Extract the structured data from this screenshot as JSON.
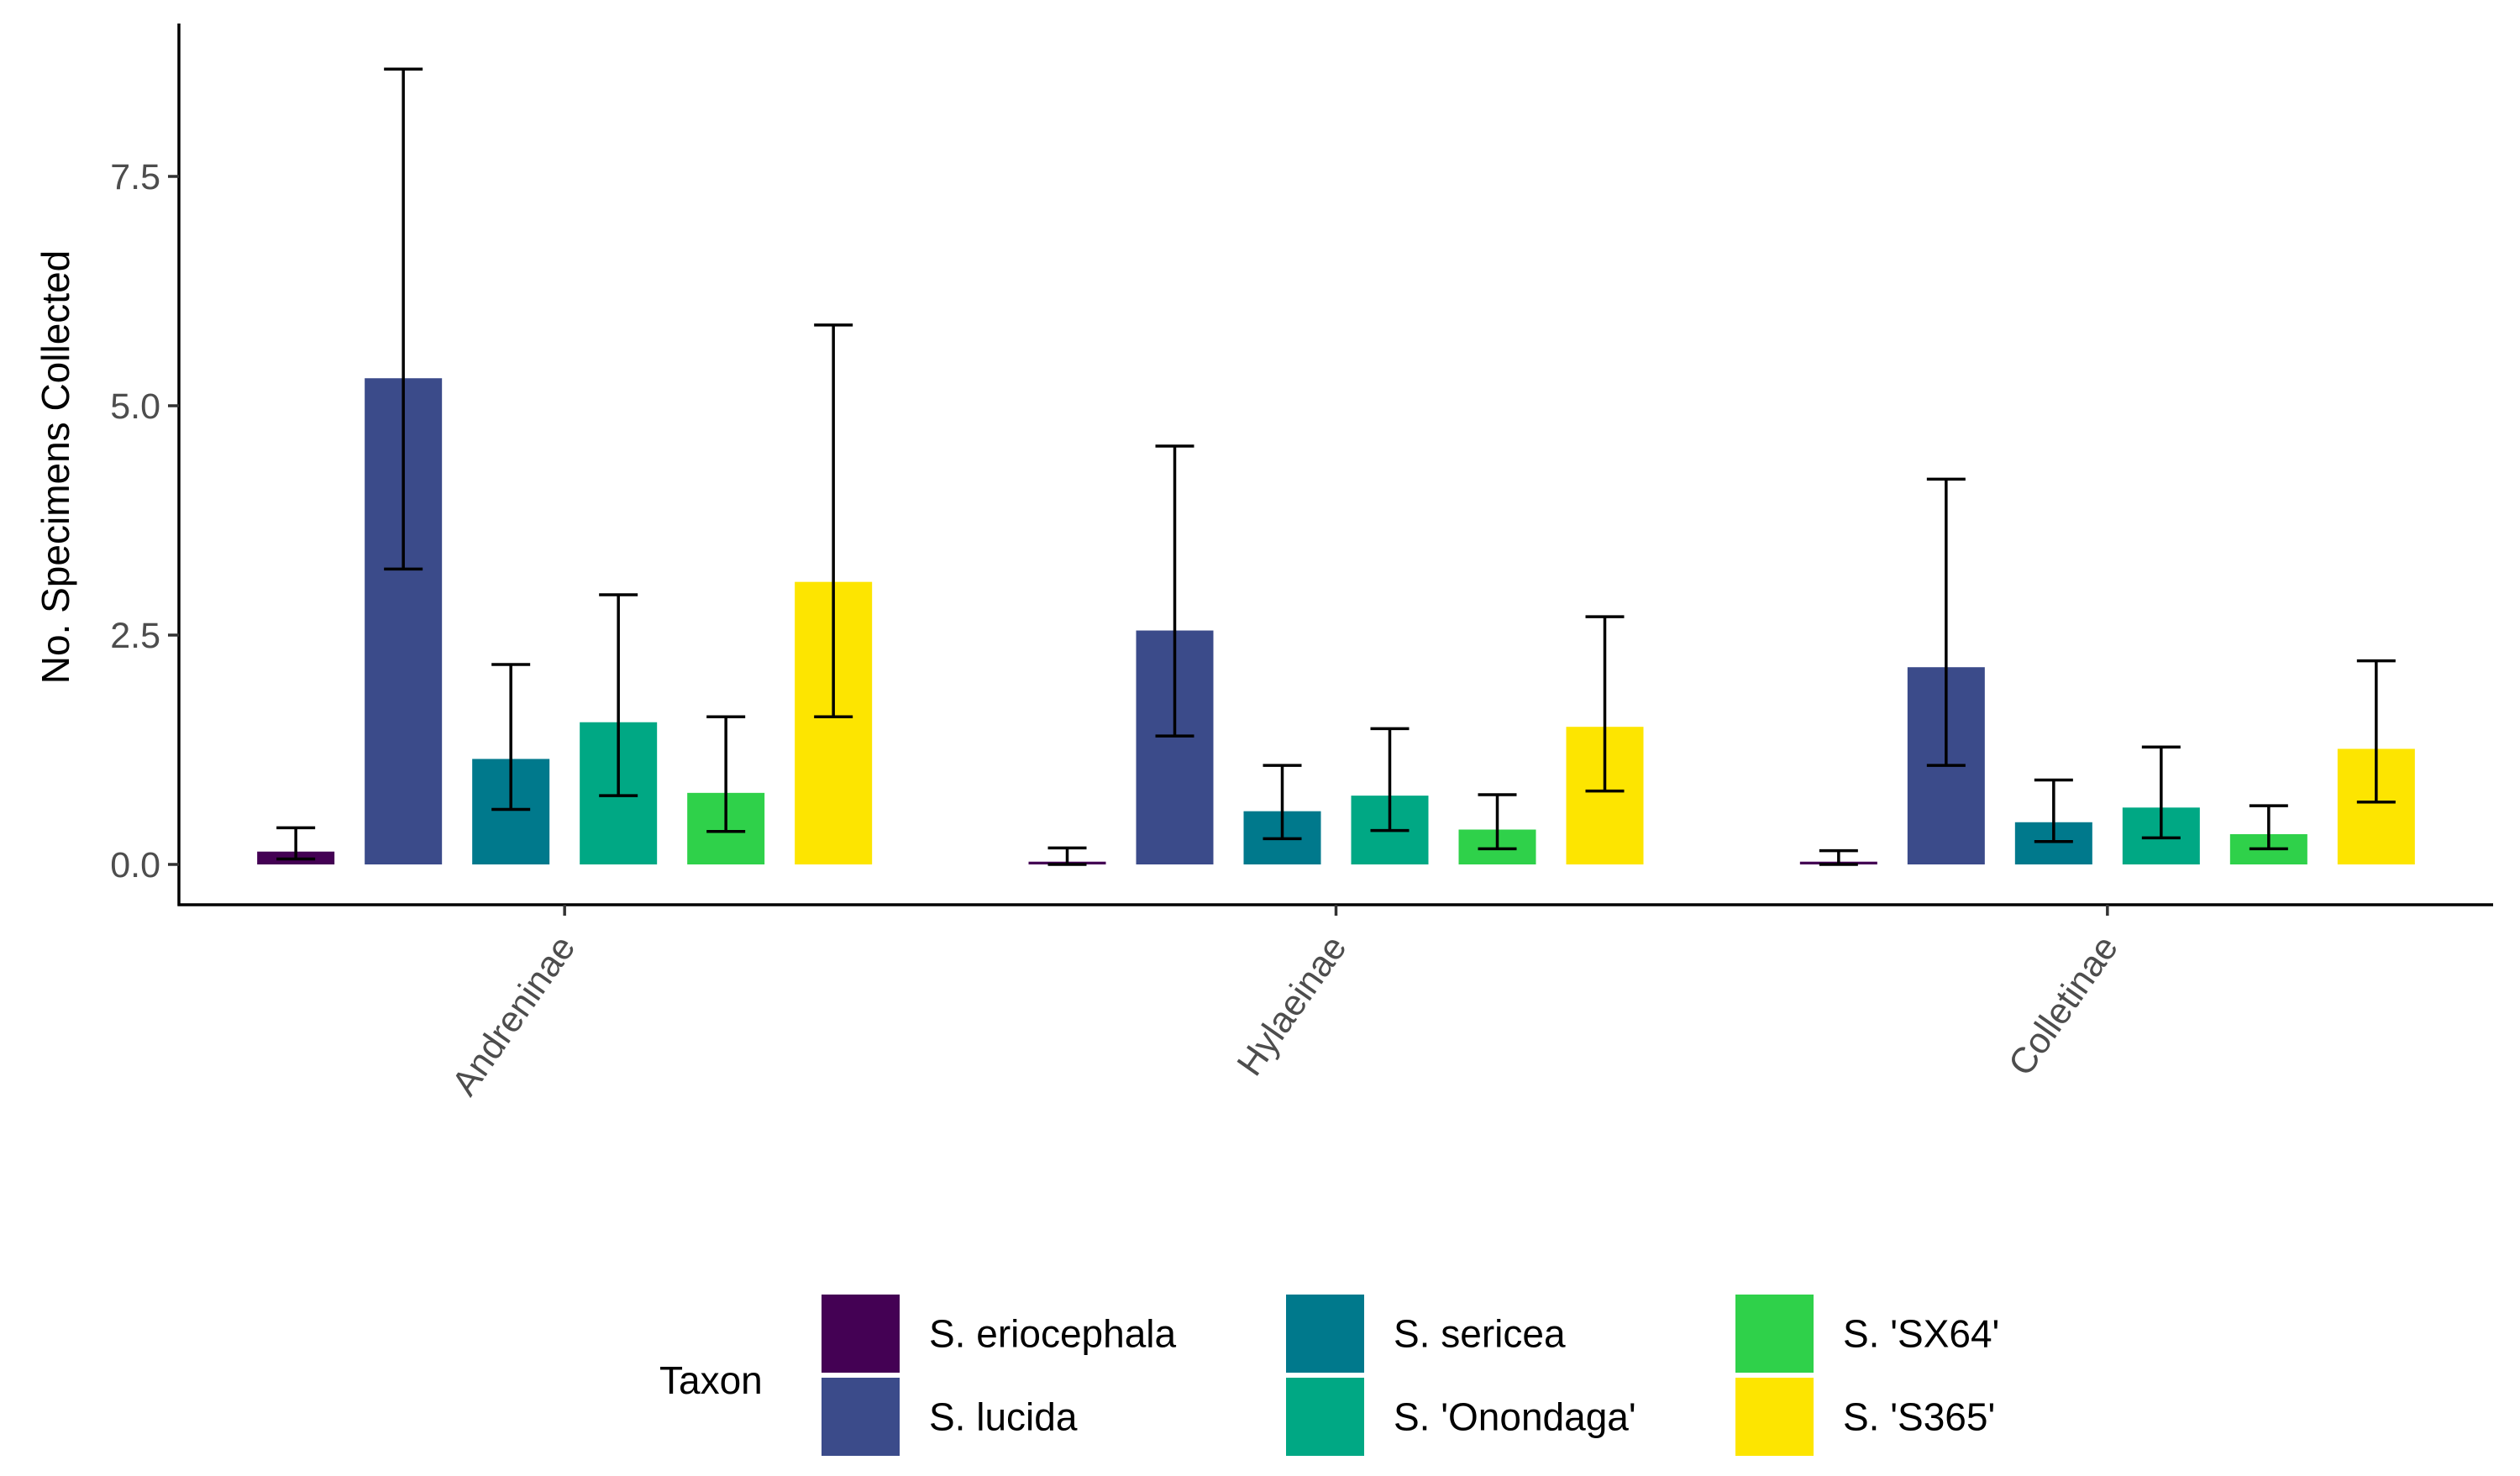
{
  "chart_data": {
    "type": "bar",
    "title": "",
    "xlabel": "",
    "ylabel": "No. Specimens Collected",
    "ylim": [
      -0.45,
      9.3
    ],
    "yticks": [
      0.0,
      2.5,
      5.0,
      7.5
    ],
    "ytick_labels": [
      "0.0",
      "2.5",
      "5.0",
      "7.5"
    ],
    "categories": [
      "Andreninae",
      "Hylaeinae",
      "Colletinae"
    ],
    "series": [
      {
        "name": "S. eriocephala",
        "color": "#440154",
        "values": [
          0.14,
          0.03,
          0.03
        ],
        "err_low": [
          0.06,
          0.0,
          0.0
        ],
        "err_high": [
          0.4,
          0.18,
          0.15
        ]
      },
      {
        "name": "S. lucida",
        "color": "#3B4B8A",
        "values": [
          5.3,
          2.55,
          2.15
        ],
        "err_low": [
          3.22,
          1.4,
          1.08
        ],
        "err_high": [
          8.67,
          4.56,
          4.2
        ]
      },
      {
        "name": "S. sericea",
        "color": "#00798C",
        "values": [
          1.15,
          0.58,
          0.46
        ],
        "err_low": [
          0.6,
          0.28,
          0.25
        ],
        "err_high": [
          2.18,
          1.08,
          0.92
        ]
      },
      {
        "name": "S. 'Onondaga'",
        "color": "#00A884",
        "values": [
          1.55,
          0.75,
          0.62
        ],
        "err_low": [
          0.75,
          0.37,
          0.29
        ],
        "err_high": [
          2.94,
          1.48,
          1.28
        ]
      },
      {
        "name": "S. 'SX64'",
        "color": "#2FD14A",
        "values": [
          0.78,
          0.38,
          0.33
        ],
        "err_low": [
          0.36,
          0.17,
          0.17
        ],
        "err_high": [
          1.61,
          0.76,
          0.64
        ]
      },
      {
        "name": "S. 'S365'",
        "color": "#FDE500",
        "values": [
          3.08,
          1.5,
          1.26
        ],
        "err_low": [
          1.61,
          0.8,
          0.68
        ],
        "err_high": [
          5.88,
          2.7,
          2.22
        ]
      }
    ],
    "grid": false,
    "legend": {
      "title": "Taxon",
      "position": "bottom",
      "columns": 3
    }
  }
}
